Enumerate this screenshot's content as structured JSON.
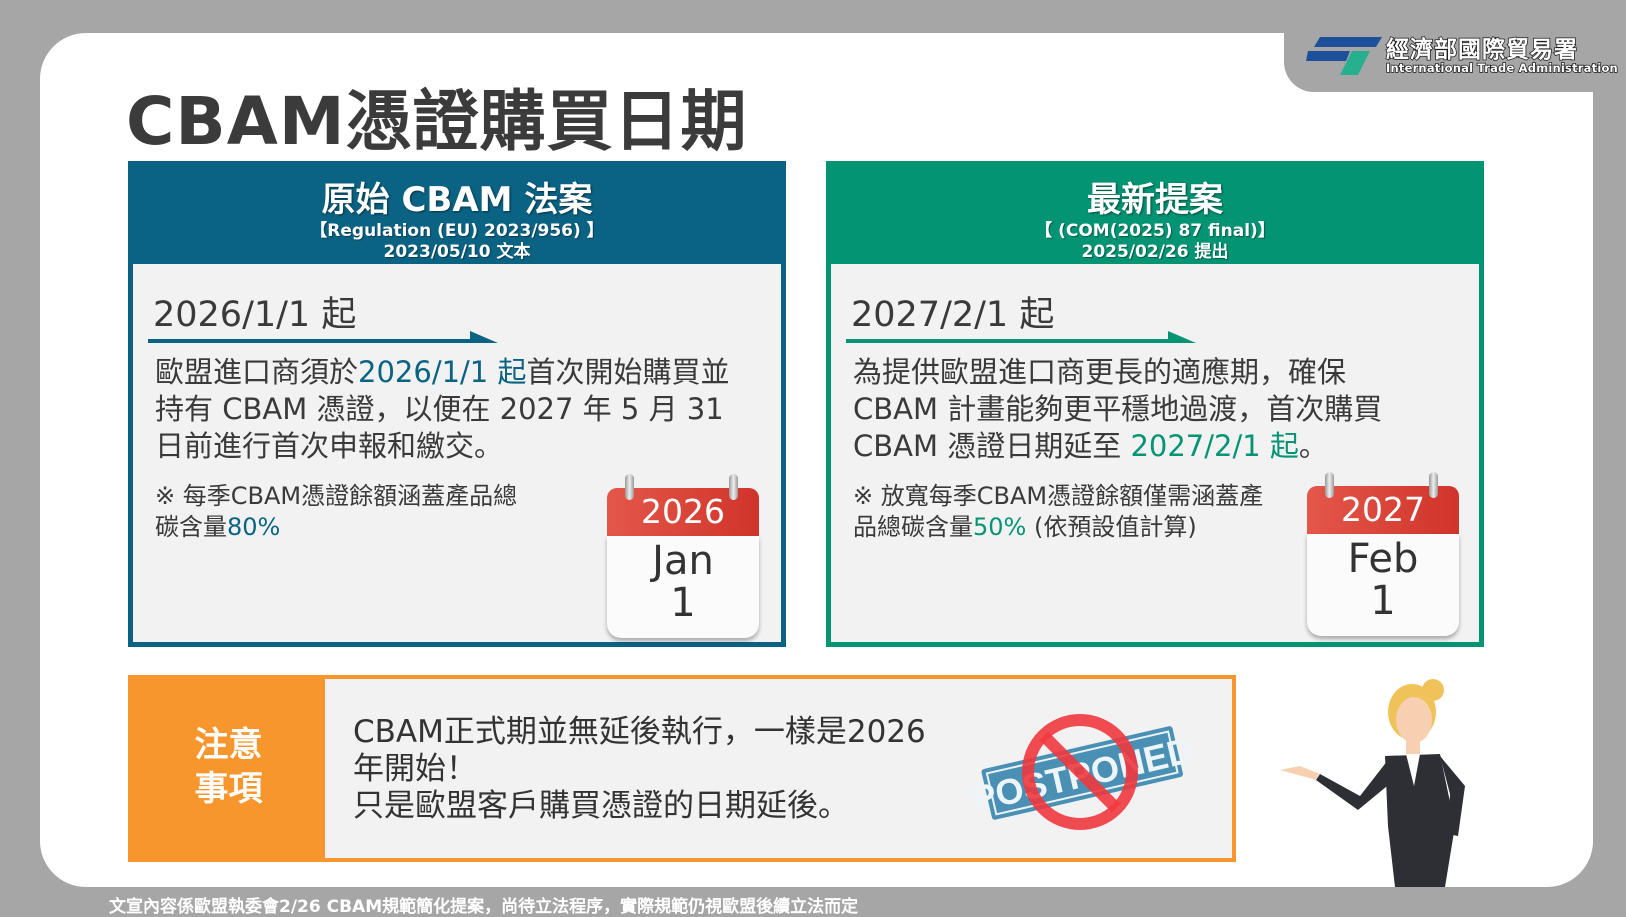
{
  "logo": {
    "name_zh": "經濟部國際貿易署",
    "name_en": "International Trade Administration"
  },
  "title": "CBAM憑證購買日期",
  "left_card": {
    "color": "#0b6384",
    "heading": "原始 CBAM 法案",
    "reference": "【Regulation (EU) 2023/956) 】",
    "date_line": "2023/05/10 文本",
    "start": "2026/1/1 起",
    "para_pre": "歐盟進口商須於",
    "para_hl": "2026/1/1 起",
    "para_post": "首次開始購買並持有 CBAM 憑證，以便在 2027 年 5 月 31 日前進行首次申報和繳交。",
    "note_pre": "※ 每季CBAM憑證餘額涵蓋產品總碳含量",
    "note_hl": "80%",
    "note_post": "",
    "calendar": {
      "year": "2026",
      "month": "Jan",
      "day": "1"
    }
  },
  "right_card": {
    "color": "#039474",
    "heading": "最新提案",
    "reference": "【 (COM(2025) 87 final)】",
    "date_line": "2025/02/26 提出",
    "start": "2027/2/1 起",
    "para_pre": "為提供歐盟進口商更長的適應期，確保CBAM 計畫能夠更平穩地過渡，首次購買CBAM 憑證日期延至 ",
    "para_hl": "2027/2/1 起",
    "para_post": "。",
    "note_pre": "※ 放寬每季CBAM憑證餘額僅需涵蓋產品總碳含量",
    "note_hl": "50%",
    "note_post": " (依預設值計算)",
    "calendar": {
      "year": "2027",
      "month": "Feb",
      "day": "1"
    }
  },
  "notice": {
    "label_line1": "注意",
    "label_line2": "事項",
    "line1": "CBAM正式期並無延後執行，一樣是2026",
    "line2": "年開始！",
    "line3": "只是歐盟客戶購買憑證的日期延後。",
    "stamp": "POSTPONED"
  },
  "footer": "文宣內容係歐盟執委會2/26 CBAM規範簡化提案，尚待立法程序，實際規範仍視歐盟後續立法而定"
}
